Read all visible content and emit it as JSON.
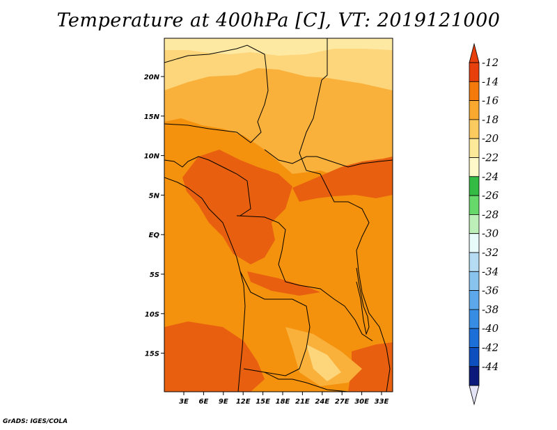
{
  "title": "Temperature at 400hPa [C], VT: 2019121000",
  "credit": "GrADS: IGES/COLA",
  "lat_labels": [
    "20N",
    "15N",
    "10N",
    "5N",
    "EQ",
    "5S",
    "10S",
    "15S"
  ],
  "lon_labels": [
    "3E",
    "6E",
    "9E",
    "12E",
    "15E",
    "18E",
    "21E",
    "24E",
    "27E",
    "30E",
    "33E"
  ],
  "colorbar": {
    "labels": [
      "-12",
      "-14",
      "-16",
      "-18",
      "-20",
      "-22",
      "-24",
      "-26",
      "-28",
      "-30",
      "-32",
      "-34",
      "-36",
      "-38",
      "-40",
      "-42",
      "-44"
    ],
    "colors": [
      "#e8400c",
      "#f47a0c",
      "#f9a830",
      "#fccb60",
      "#fde99a",
      "#fff8c8",
      "#33bb44",
      "#66d96a",
      "#bdf0b8",
      "#e8fbfb",
      "#b5dcf2",
      "#88c4ee",
      "#5da8ea",
      "#378ce4",
      "#1c6ed8",
      "#0d4fbf",
      "#0b1a7a"
    ],
    "top_color": "#e8400c",
    "bottom_color": "#e4e4f6"
  },
  "map_colors": {
    "c12": "#e8600f",
    "c14": "#f4920e",
    "c16": "#f9b13c",
    "c18": "#fdd57a",
    "c20": "#fee9a3"
  }
}
